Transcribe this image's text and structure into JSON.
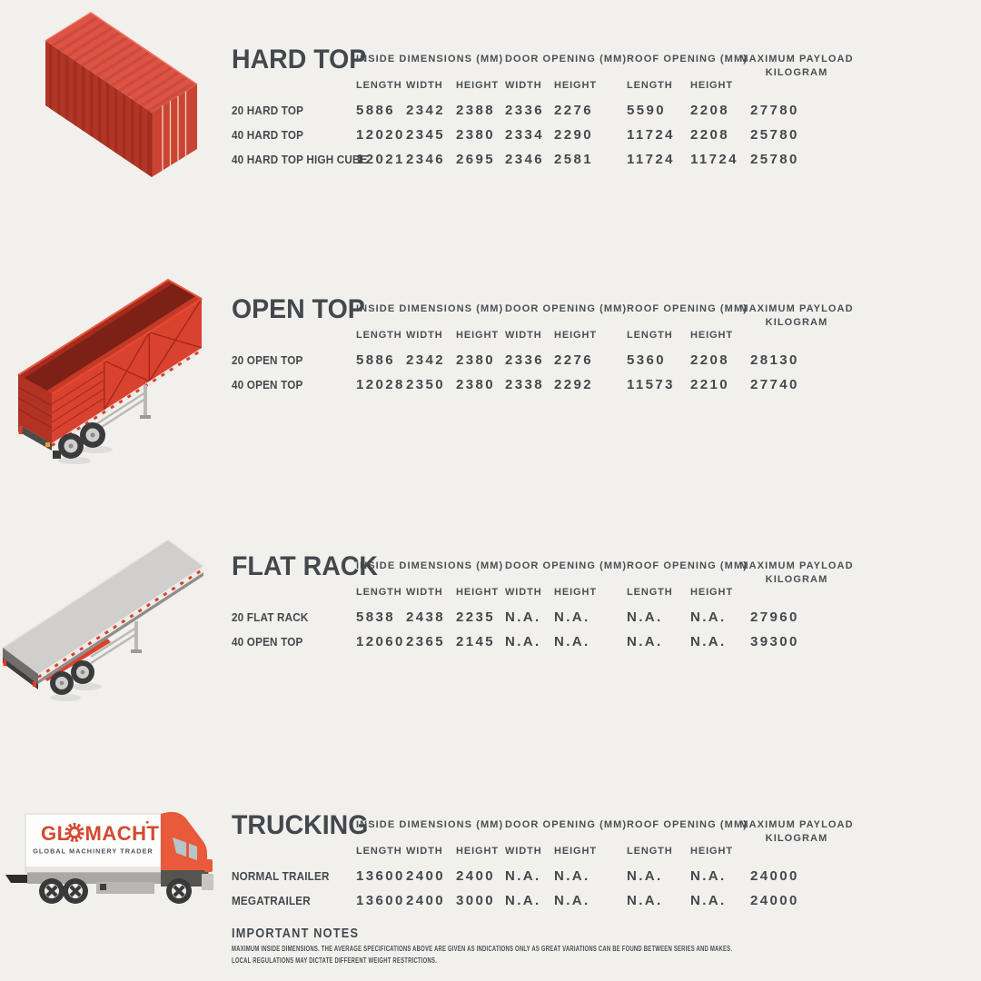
{
  "colors": {
    "background": "#f1f0ed",
    "text": "#474b50",
    "accent_red": "#d9422f",
    "logo_red": "#d4492e",
    "platform_gray": "#d0cfce"
  },
  "columns": {
    "inside": "INSIDE DIMENSIONS (MM)",
    "door": "DOOR OPENING (MM)",
    "roof": "ROOF OPENING (MM)",
    "payload_line1": "MAXIMUM PAYLOAD",
    "payload_line2": "KILOGRAM",
    "sub": [
      "LENGTH",
      "WIDTH",
      "HEIGHT",
      "WIDTH",
      "HEIGHT",
      "LENGTH",
      "HEIGHT"
    ]
  },
  "sections": [
    {
      "title": "HARD TOP",
      "rows": [
        {
          "label": "20 HARD TOP",
          "values": [
            "5886",
            "2342",
            "2388",
            "2336",
            "2276",
            "5590",
            "2208",
            "27780"
          ]
        },
        {
          "label": "40 HARD TOP",
          "values": [
            "12020",
            "2345",
            "2380",
            "2334",
            "2290",
            "11724",
            "2208",
            "25780"
          ]
        },
        {
          "label": "40 HARD TOP HIGH CUBE",
          "values": [
            "12021",
            "2346",
            "2695",
            "2346",
            "2581",
            "11724",
            "11724",
            "25780"
          ]
        }
      ]
    },
    {
      "title": "OPEN TOP",
      "rows": [
        {
          "label": "20 OPEN TOP",
          "values": [
            "5886",
            "2342",
            "2380",
            "2336",
            "2276",
            "5360",
            "2208",
            "28130"
          ]
        },
        {
          "label": "40 OPEN TOP",
          "values": [
            "12028",
            "2350",
            "2380",
            "2338",
            "2292",
            "11573",
            "2210",
            "27740"
          ]
        }
      ]
    },
    {
      "title": "FLAT RACK",
      "rows": [
        {
          "label": "20 FLAT RACK",
          "values": [
            "5838",
            "2438",
            "2235",
            "N.A.",
            "N.A.",
            "N.A.",
            "N.A.",
            "27960"
          ]
        },
        {
          "label": "40 OPEN TOP",
          "values": [
            "12060",
            "2365",
            "2145",
            "N.A.",
            "N.A.",
            "N.A.",
            "N.A.",
            "39300"
          ]
        }
      ]
    },
    {
      "title": "TRUCKING",
      "rows": [
        {
          "label": "NORMAL TRAILER",
          "values": [
            "13600",
            "2400",
            "2400",
            "N.A.",
            "N.A.",
            "N.A.",
            "N.A.",
            "24000"
          ]
        },
        {
          "label": "MEGATRAILER",
          "values": [
            "13600",
            "2400",
            "3000",
            "N.A.",
            "N.A.",
            "N.A.",
            "N.A.",
            "24000"
          ]
        }
      ]
    }
  ],
  "truck_logo": {
    "brand_left": "GL",
    "brand_right": "MACHT",
    "tagline": "GLOBAL MACHINERY TRADER"
  },
  "notes": {
    "title": "IMPORTANT NOTES",
    "line1": "MAXIMUM INSIDE DIMENSIONS. THE AVERAGE SPECIFICATIONS ABOVE ARE GIVEN AS INDICATIONS ONLY AS GREAT VARIATIONS CAN BE FOUND BETWEEN SERIES AND MAKES.",
    "line2": "LOCAL REGULATIONS MAY DICTATE DIFFERENT WEIGHT RESTRICTIONS."
  }
}
